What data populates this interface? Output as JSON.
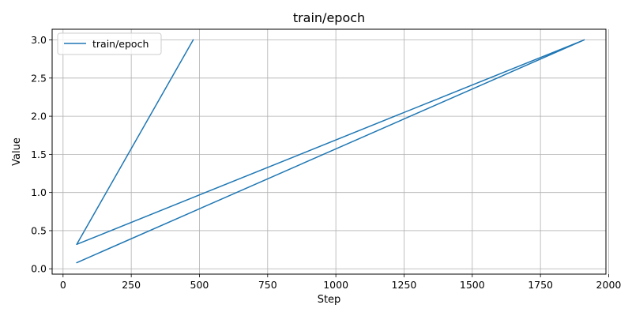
{
  "chart_data": {
    "type": "line",
    "title": "train/epoch",
    "xlabel": "Step",
    "ylabel": "Value",
    "xlim": [
      -40,
      1990
    ],
    "ylim": [
      -0.07,
      3.14
    ],
    "xticks": [
      0,
      250,
      500,
      750,
      1000,
      1250,
      1500,
      1750,
      2000
    ],
    "yticks": [
      0.0,
      0.5,
      1.0,
      1.5,
      2.0,
      2.5,
      3.0
    ],
    "xtick_labels": [
      "0",
      "250",
      "500",
      "750",
      "1000",
      "1250",
      "1500",
      "1750",
      "2000"
    ],
    "ytick_labels": [
      "0.0",
      "0.5",
      "1.0",
      "1.5",
      "2.0",
      "2.5",
      "3.0"
    ],
    "grid": true,
    "legend_position": "top-left",
    "series": [
      {
        "name": "train/epoch",
        "color": "#1f77b4",
        "x": [
          477,
          50,
          1910,
          50,
          1910
        ],
        "y": [
          3.0,
          0.32,
          3.0,
          0.08,
          3.0
        ]
      }
    ]
  }
}
